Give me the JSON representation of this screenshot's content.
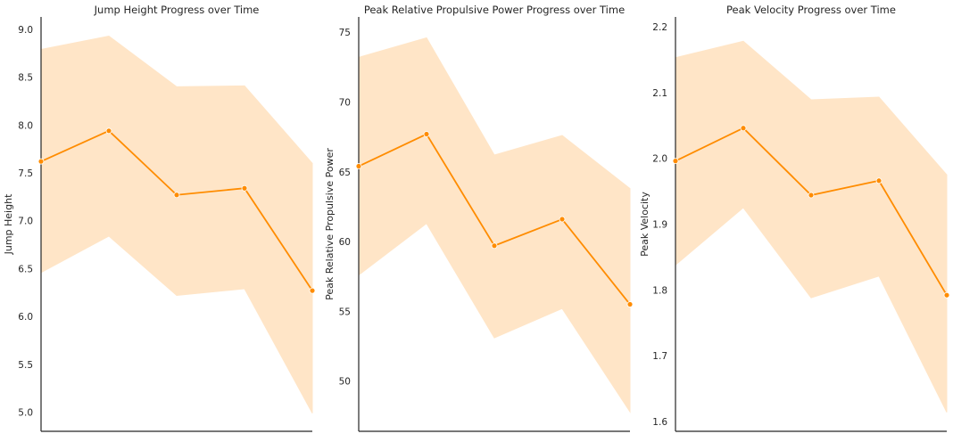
{
  "chart_data": [
    {
      "type": "line",
      "title": "Jump Height Progress over Time",
      "xlabel": "",
      "ylabel": "Jump Height",
      "x": [
        0,
        1,
        2,
        3,
        4
      ],
      "series": [
        {
          "values": [
            7.62,
            7.94,
            7.27,
            7.34,
            6.27
          ],
          "ci_lower": [
            6.46,
            6.84,
            6.22,
            6.29,
            4.99
          ],
          "ci_upper": [
            8.79,
            8.93,
            8.4,
            8.41,
            7.6
          ]
        }
      ],
      "yticks": [
        5.0,
        5.5,
        6.0,
        6.5,
        7.0,
        7.5,
        8.0,
        8.5,
        9.0
      ],
      "ytick_labels": [
        "5.0",
        "5.5",
        "6.0",
        "6.5",
        "7.0",
        "7.5",
        "8.0",
        "8.5",
        "9.0"
      ],
      "ylim": [
        4.8,
        9.13
      ],
      "xlim": [
        0,
        4
      ],
      "grid": false,
      "line_color": "#ff8c00",
      "band_color": "#ffe5c7"
    },
    {
      "type": "line",
      "title": "Peak Relative Propulsive Power Progress over Time",
      "xlabel": "",
      "ylabel": "Peak Relative Propulsive Power",
      "x": [
        0,
        1,
        2,
        3,
        4
      ],
      "series": [
        {
          "values": [
            65.4,
            67.7,
            59.7,
            61.6,
            55.5
          ],
          "ci_lower": [
            57.6,
            61.3,
            53.1,
            55.2,
            47.8
          ],
          "ci_upper": [
            73.2,
            74.6,
            66.2,
            67.6,
            63.8
          ]
        }
      ],
      "yticks": [
        50,
        55,
        60,
        65,
        70,
        75
      ],
      "ytick_labels": [
        "50",
        "55",
        "60",
        "65",
        "70",
        "75"
      ],
      "ylim": [
        46.4,
        76.1
      ],
      "xlim": [
        0,
        4
      ],
      "grid": false,
      "line_color": "#ff8c00",
      "band_color": "#ffe5c7"
    },
    {
      "type": "line",
      "title": "Peak Velocity Progress over Time",
      "xlabel": "",
      "ylabel": "Peak Velocity",
      "x": [
        0,
        1,
        2,
        3,
        4
      ],
      "series": [
        {
          "values": [
            1.996,
            2.046,
            1.944,
            1.966,
            1.792
          ],
          "ci_lower": [
            1.838,
            1.925,
            1.788,
            1.821,
            1.614
          ],
          "ci_upper": [
            2.153,
            2.178,
            2.089,
            2.093,
            1.975
          ]
        }
      ],
      "yticks": [
        1.6,
        1.7,
        1.8,
        1.9,
        2.0,
        2.1,
        2.2
      ],
      "ytick_labels": [
        "1.6",
        "1.7",
        "1.8",
        "1.9",
        "2.0",
        "2.1",
        "2.2"
      ],
      "ylim": [
        1.585,
        2.215
      ],
      "xlim": [
        0,
        4
      ],
      "grid": false,
      "line_color": "#ff8c00",
      "band_color": "#ffe5c7"
    }
  ]
}
